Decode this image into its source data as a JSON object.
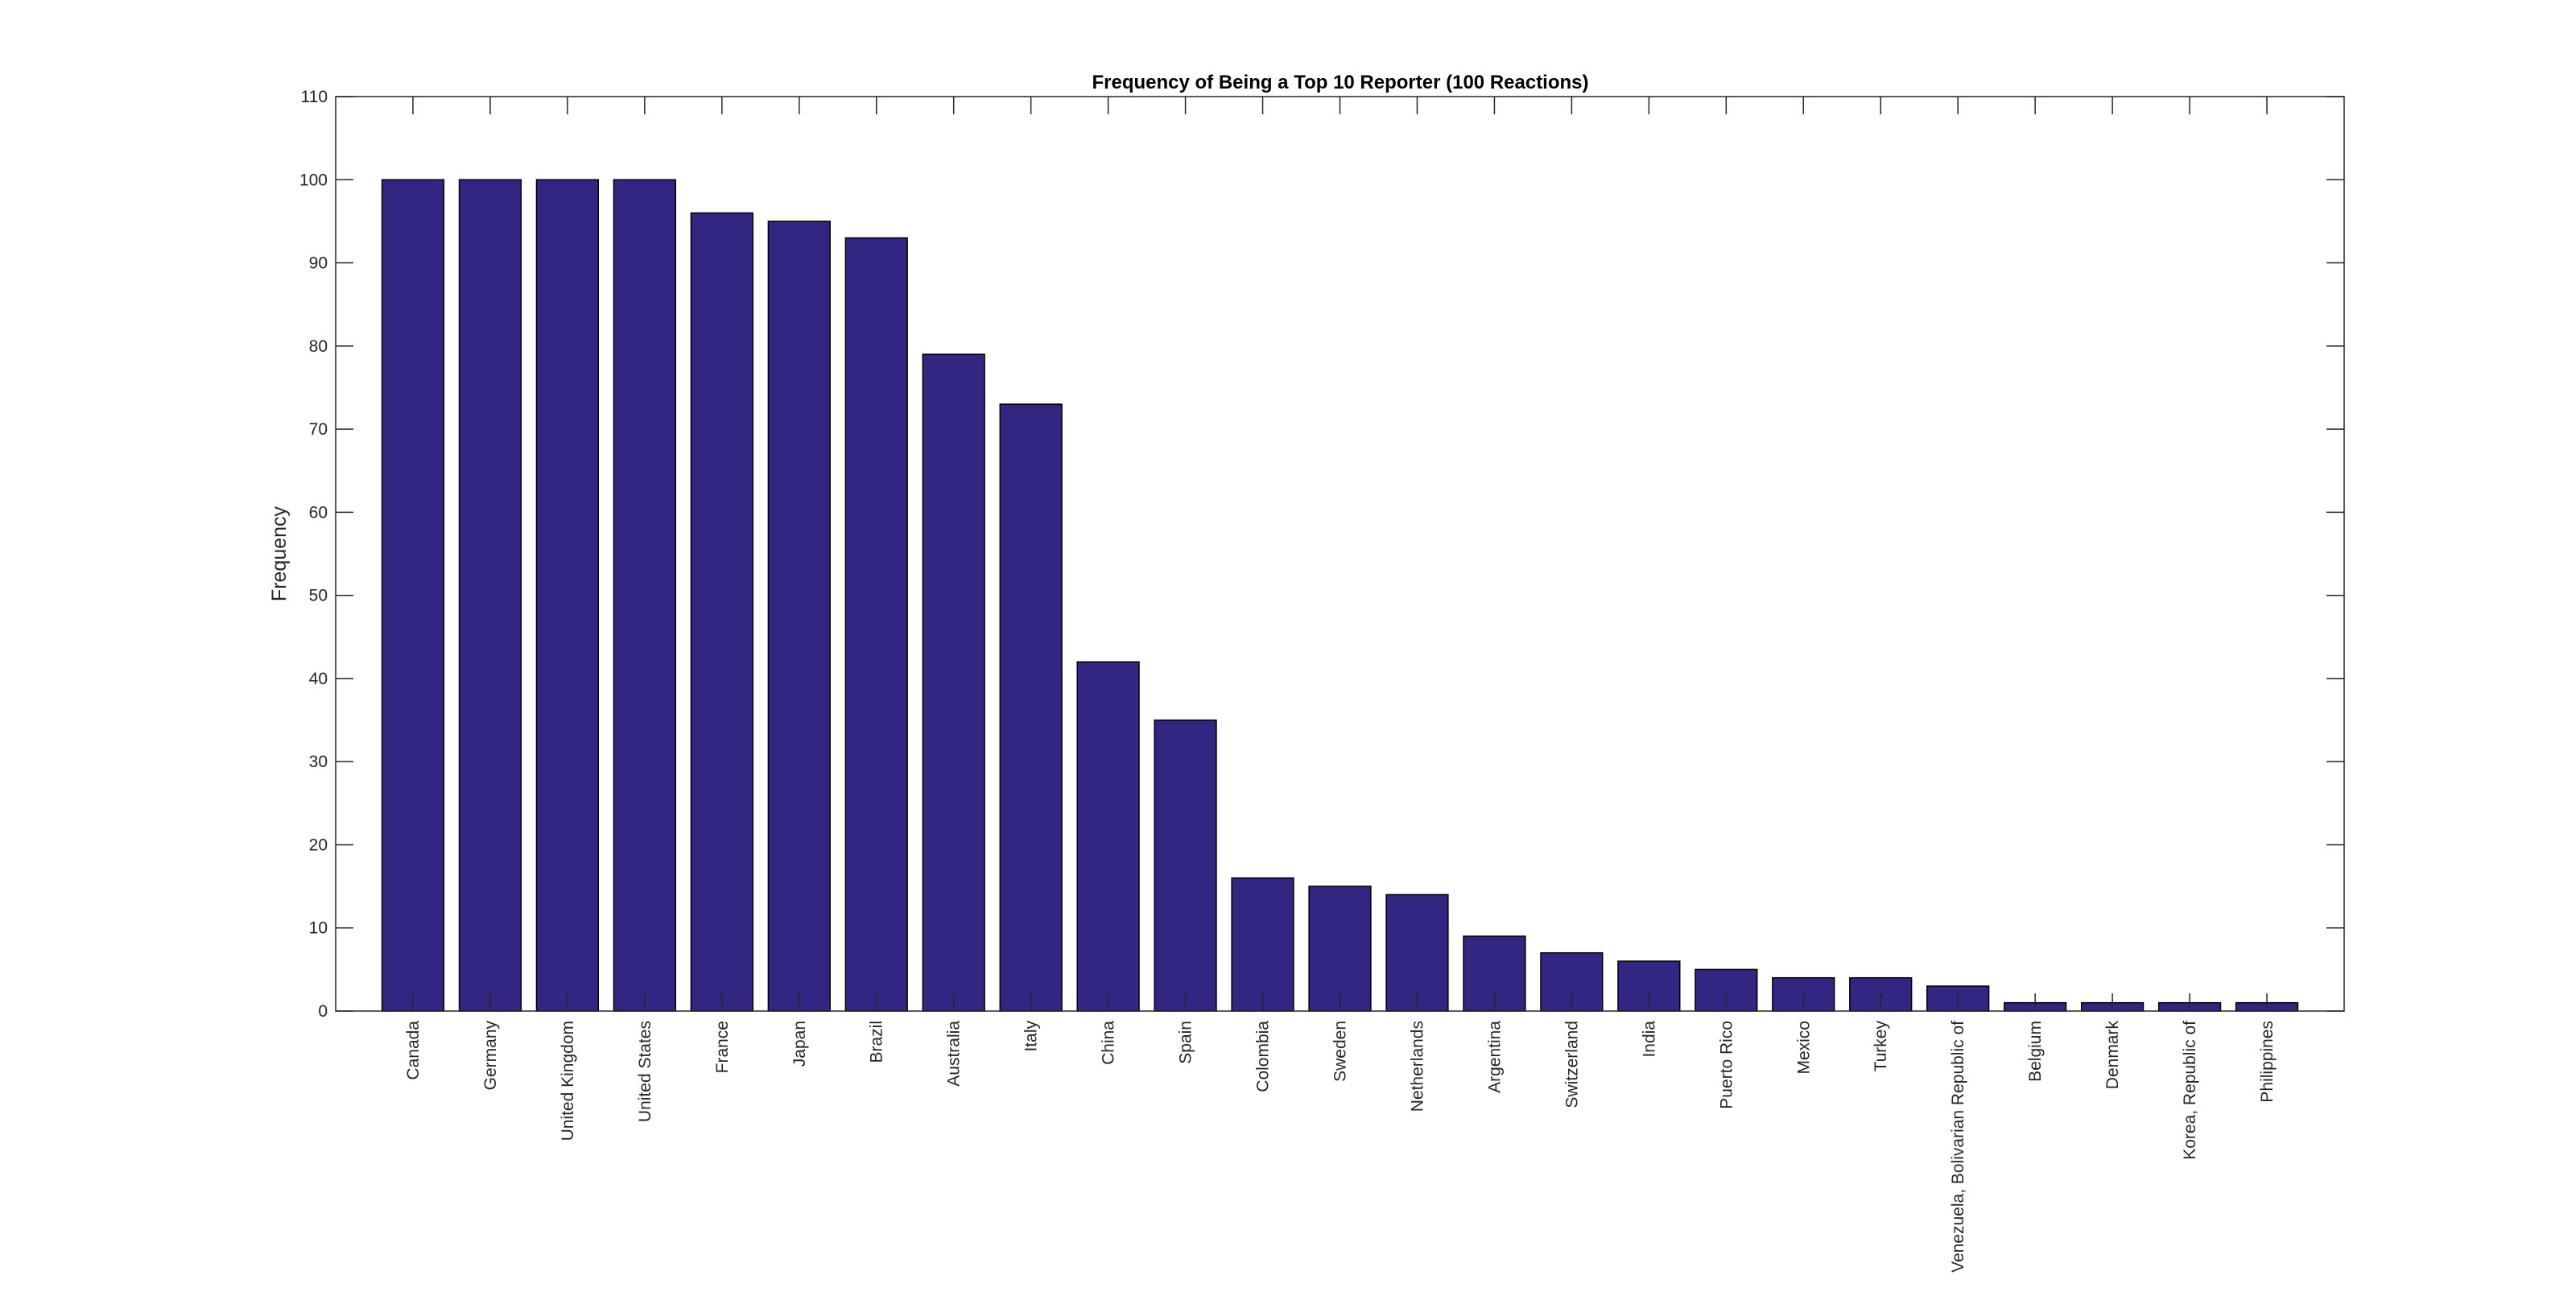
{
  "chart_data": {
    "type": "bar",
    "title": "Frequency of Being a Top 10 Reporter (100 Reactions)",
    "xlabel": "",
    "ylabel": "Frequency",
    "ylim": [
      0,
      110
    ],
    "yticks": [
      0,
      10,
      20,
      30,
      40,
      50,
      60,
      70,
      80,
      90,
      100,
      110
    ],
    "grid": false,
    "bar_color": "#312783",
    "categories": [
      "Canada",
      "Germany",
      "United Kingdom",
      "United States",
      "France",
      "Japan",
      "Brazil",
      "Australia",
      "Italy",
      "China",
      "Spain",
      "Colombia",
      "Sweden",
      "Netherlands",
      "Argentina",
      "Switzerland",
      "India",
      "Puerto Rico",
      "Mexico",
      "Turkey",
      "Venezuela, Bolivarian Republic of",
      "Belgium",
      "Denmark",
      "Korea, Republic of",
      "Philippines"
    ],
    "values": [
      100,
      100,
      100,
      100,
      96,
      95,
      93,
      79,
      73,
      42,
      35,
      16,
      15,
      14,
      9,
      7,
      6,
      5,
      4,
      4,
      3,
      1,
      1,
      1,
      1
    ]
  }
}
